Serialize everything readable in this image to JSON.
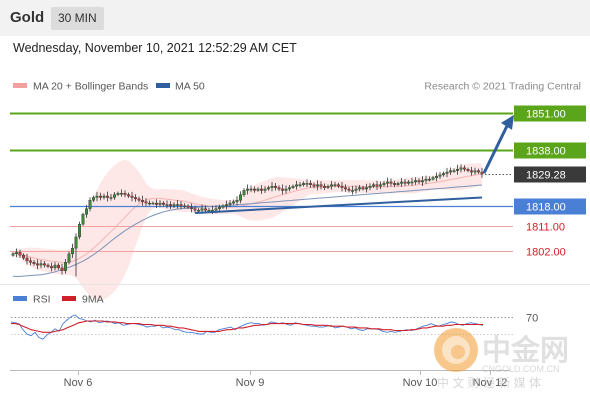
{
  "header": {
    "title": "Gold",
    "timeframe": "30 MIN"
  },
  "datetime": "Wednesday, November 10, 2021 12:52:29 AM CET",
  "legend": [
    {
      "label": "MA 20 + Bollinger Bands",
      "color": "#f08080"
    },
    {
      "label": "MA 50",
      "color": "#2f5f9e"
    }
  ],
  "credit": "Research © 2021 Trading Central",
  "watermark": {
    "brand_cn": "中金网",
    "domain": "CNGOLD.COM.CN",
    "slogan": "中 文 财 经 新 媒 体"
  },
  "colors": {
    "resistance": "#5aa51a",
    "support": "#4a7fd6",
    "pivot": "#3a3a3a",
    "weak": "#f2a0a0",
    "weak_text": "#d0202a",
    "arrow": "#2f5f9e"
  },
  "chart_data": [
    {
      "type": "line",
      "subtype": "candlestick",
      "ylim": [
        1791,
        1857
      ],
      "x_ticks": [
        "Nov 6",
        "Nov 9",
        "Nov 10",
        "Nov 12"
      ],
      "price_levels": [
        {
          "value": 1851.0,
          "label": "1851.00",
          "kind": "resistance"
        },
        {
          "value": 1838.0,
          "label": "1838.00",
          "kind": "resistance"
        },
        {
          "value": 1829.28,
          "label": "1829.28",
          "kind": "current"
        },
        {
          "value": 1818.0,
          "label": "1818.00",
          "kind": "pivot"
        },
        {
          "value": 1811.0,
          "label": "1811.00",
          "kind": "support"
        },
        {
          "value": 1802.0,
          "label": "1802.00",
          "kind": "support"
        }
      ],
      "close": [
        1801.0,
        1801.5,
        1800.5,
        1799.5,
        1798.5,
        1798.0,
        1797.5,
        1797.0,
        1797.5,
        1797.0,
        1796.5,
        1796.0,
        1797.0,
        1796.0,
        1795.0,
        1798.0,
        1801.0,
        1803.0,
        1807.0,
        1811.5,
        1815.0,
        1817.0,
        1820.0,
        1821.0,
        1821.5,
        1821.0,
        1821.5,
        1821.0,
        1821.0,
        1822.0,
        1822.5,
        1822.5,
        1822.0,
        1821.5,
        1821.0,
        1820.5,
        1820.0,
        1819.5,
        1819.0,
        1819.0,
        1819.0,
        1818.5,
        1819.0,
        1818.5,
        1818.5,
        1818.0,
        1818.5,
        1818.5,
        1818.0,
        1818.0,
        1817.5,
        1817.0,
        1816.5,
        1816.5,
        1817.0,
        1816.5,
        1816.5,
        1816.5,
        1817.0,
        1817.5,
        1818.0,
        1818.5,
        1819.0,
        1819.5,
        1820.0,
        1822.0,
        1823.5,
        1824.0,
        1824.0,
        1823.5,
        1824.0,
        1823.5,
        1824.0,
        1824.5,
        1825.0,
        1824.5,
        1824.0,
        1823.5,
        1824.0,
        1824.5,
        1825.0,
        1825.5,
        1825.5,
        1826.0,
        1826.0,
        1825.5,
        1825.0,
        1825.5,
        1825.0,
        1824.5,
        1825.0,
        1825.5,
        1825.5,
        1825.0,
        1824.5,
        1824.0,
        1823.5,
        1823.5,
        1824.0,
        1824.5,
        1824.0,
        1824.5,
        1825.0,
        1825.5,
        1825.0,
        1825.5,
        1826.0,
        1826.5,
        1826.0,
        1825.5,
        1826.0,
        1826.5,
        1826.0,
        1826.5,
        1826.5,
        1827.0,
        1826.5,
        1827.0,
        1827.5,
        1827.5,
        1828.0,
        1828.5,
        1829.0,
        1829.5,
        1830.0,
        1830.5,
        1830.5,
        1831.0,
        1831.5,
        1831.0,
        1830.5,
        1830.0,
        1830.5,
        1830.0,
        1829.28
      ],
      "ma50": [
        1793.0,
        1793.0,
        1793.0,
        1793.1,
        1793.2,
        1793.3,
        1793.4,
        1793.5,
        1793.6,
        1793.8,
        1794.0,
        1794.3,
        1794.6,
        1795.0,
        1795.4,
        1795.8,
        1796.2,
        1796.7,
        1797.2,
        1797.8,
        1798.4,
        1799.1,
        1799.9,
        1800.7,
        1801.6,
        1802.5,
        1803.5,
        1804.5,
        1805.5,
        1806.5,
        1807.4,
        1808.3,
        1809.2,
        1810.0,
        1810.8,
        1811.5,
        1812.2,
        1812.9,
        1813.5,
        1814.1,
        1814.6,
        1815.1,
        1815.5,
        1815.9,
        1816.2,
        1816.5,
        1816.7,
        1816.9,
        1817.0,
        1817.1,
        1817.2,
        1817.3,
        1817.4,
        1817.5,
        1817.6,
        1817.7,
        1817.8,
        1817.8,
        1817.9,
        1818.0,
        1818.0,
        1818.1,
        1818.2,
        1818.3,
        1818.4,
        1818.5,
        1818.6,
        1818.7,
        1818.8,
        1818.9,
        1819.0,
        1819.1,
        1819.2,
        1819.3,
        1819.4,
        1819.5,
        1819.6,
        1819.7,
        1819.8,
        1819.9,
        1820.0,
        1820.1,
        1820.2,
        1820.3,
        1820.4,
        1820.5,
        1820.6,
        1820.7,
        1820.8,
        1820.9,
        1821.0,
        1821.1,
        1821.2,
        1821.3,
        1821.4,
        1821.5,
        1821.6,
        1821.7,
        1821.8,
        1821.9,
        1822.0,
        1822.1,
        1822.2,
        1822.3,
        1822.4,
        1822.5,
        1822.6,
        1822.7,
        1822.8,
        1822.9,
        1823.0,
        1823.1,
        1823.2,
        1823.3,
        1823.4,
        1823.5,
        1823.6,
        1823.7,
        1823.8,
        1823.9,
        1824.0,
        1824.1,
        1824.2,
        1824.3,
        1824.4,
        1824.5,
        1824.6,
        1824.7,
        1824.8,
        1824.9,
        1825.0,
        1825.1,
        1825.2,
        1825.3,
        1825.4
      ],
      "trend_support": {
        "from": {
          "index": 52,
          "value": 1815.5
        },
        "to": {
          "index": 134,
          "value": 1821.0
        }
      },
      "projection": {
        "from": {
          "index": 134,
          "value": 1829.28
        },
        "to": {
          "index": 147,
          "value": 1851.0
        }
      }
    },
    {
      "type": "line",
      "legend": [
        "RSI",
        "9MA"
      ],
      "ylim": [
        20,
        80
      ],
      "level": 70,
      "rsi": [
        64,
        63,
        62,
        55,
        50,
        48,
        52,
        46,
        44,
        49,
        52,
        56,
        53,
        62,
        66,
        70,
        72,
        68,
        67,
        65,
        64,
        66,
        63,
        64,
        65,
        64,
        62,
        63,
        60,
        61,
        62,
        62,
        61,
        60,
        58,
        59,
        59,
        60,
        57,
        58,
        57,
        55,
        55,
        53,
        52,
        52,
        51,
        50,
        50,
        53,
        52,
        52,
        55,
        56,
        57,
        58,
        55,
        58,
        60,
        62,
        63,
        62,
        62,
        60,
        61,
        64,
        63,
        62,
        63,
        61,
        60,
        63,
        62,
        61,
        60,
        59,
        59,
        58,
        58,
        59,
        60,
        57,
        58,
        59,
        58,
        56,
        57,
        55,
        54,
        56,
        56,
        56,
        55,
        53,
        52,
        53,
        52,
        53,
        54,
        55,
        54,
        55,
        57,
        59,
        60,
        62,
        60,
        59,
        61,
        62,
        64,
        63,
        61,
        60,
        62,
        63,
        62,
        61,
        60
      ],
      "ma9": [
        62,
        62,
        61,
        59,
        57,
        55,
        54,
        53,
        52,
        52,
        52,
        53,
        54,
        55,
        57,
        59,
        61,
        63,
        64,
        65,
        65,
        65,
        65,
        65,
        64,
        64,
        64,
        63,
        63,
        62,
        62,
        62,
        62,
        61,
        61,
        61,
        60,
        60,
        60,
        59,
        59,
        58,
        57,
        57,
        56,
        55,
        54,
        53,
        53,
        53,
        53,
        53,
        53,
        54,
        55,
        55,
        56,
        57,
        57,
        58,
        59,
        60,
        60,
        61,
        61,
        62,
        62,
        62,
        62,
        62,
        62,
        62,
        62,
        61,
        61,
        61,
        60,
        60,
        60,
        60,
        59,
        59,
        59,
        59,
        58,
        58,
        58,
        57,
        57,
        57,
        56,
        56,
        56,
        55,
        55,
        55,
        54,
        54,
        54,
        54,
        55,
        55,
        56,
        57,
        57,
        58,
        59,
        59,
        59,
        60,
        60,
        61,
        61,
        61,
        61,
        61,
        61,
        61,
        61
      ]
    }
  ]
}
